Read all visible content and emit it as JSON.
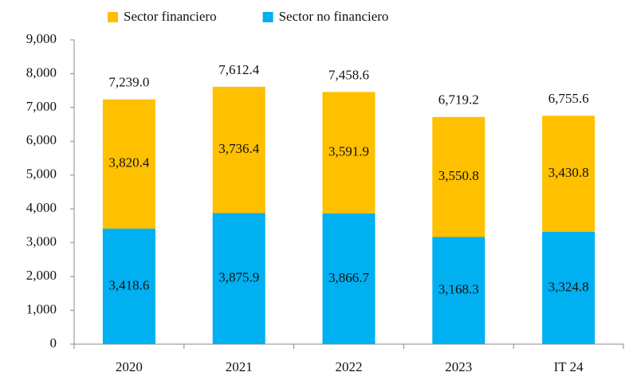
{
  "chart_data": {
    "type": "stacked_bar",
    "categories": [
      "2020",
      "2021",
      "2022",
      "2023",
      "IT 24"
    ],
    "series": [
      {
        "name": "Sector no financiero",
        "color": "#00B0F0",
        "values": [
          3418.6,
          3875.9,
          3866.7,
          3168.3,
          3324.8
        ],
        "value_labels": [
          "3,418.6",
          "3,875.9",
          "3,866.7",
          "3,168.3",
          "3,324.8"
        ]
      },
      {
        "name": "Sector financiero",
        "color": "#FFC000",
        "values": [
          3820.4,
          3736.4,
          3591.9,
          3550.8,
          3430.8
        ],
        "value_labels": [
          "3,820.4",
          "3,736.4",
          "3,591.9",
          "3,550.8",
          "3,430.8"
        ]
      }
    ],
    "totals": [
      7239.0,
      7612.4,
      7458.6,
      6719.2,
      6755.6
    ],
    "total_labels": [
      "7,239.0",
      "7,612.4",
      "7,458.6",
      "6,719.2",
      "6,755.6"
    ],
    "ylim": [
      0,
      9000
    ],
    "yticks": [
      0,
      {
        "value": 1000,
        "label": "1,000"
      },
      {
        "value": 2000,
        "label": "2,000"
      },
      {
        "value": 3000,
        "label": "3,000"
      },
      {
        "value": 4000,
        "label": "4,000"
      },
      {
        "value": 5000,
        "label": "5,000"
      },
      {
        "value": 6000,
        "label": "6,000"
      },
      {
        "value": 7000,
        "label": "7,000"
      },
      {
        "value": 8000,
        "label": "8,000"
      },
      {
        "value": 9000,
        "label": "9,000"
      }
    ],
    "legend": "top"
  }
}
